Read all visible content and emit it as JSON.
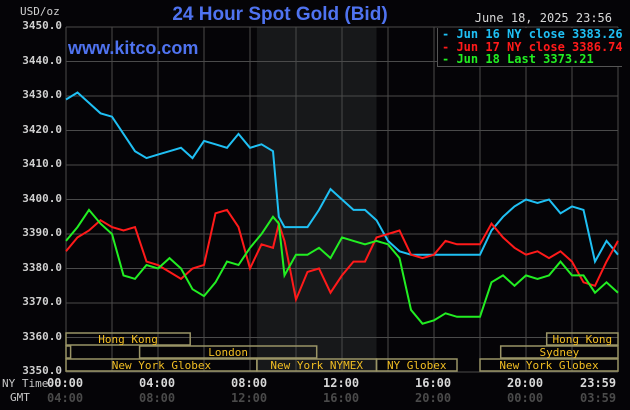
{
  "header": {
    "title": "24 Hour Spot Gold (Bid)",
    "site": "www.kitco.com",
    "datetime": "June 18, 2025 23:56",
    "y_unit": "USD/oz"
  },
  "legend": [
    {
      "label": "Jun 16 NY close 3383.26",
      "color": "#1fc0f4"
    },
    {
      "label": "Jun 17 NY close 3386.74",
      "color": "#ff1a1a"
    },
    {
      "label": "Jun 18 Last 3373.21",
      "color": "#22ee22"
    }
  ],
  "axis": {
    "y_ticks": [
      "3450.0",
      "3440.0",
      "3430.0",
      "3420.0",
      "3410.0",
      "3400.0",
      "3390.0",
      "3380.0",
      "3370.0",
      "3360.0",
      "3350.0"
    ],
    "x_row_ny_label": "NY Time",
    "x_row_gmt_label": "GMT",
    "ny_ticks": [
      "00:00",
      "04:00",
      "08:00",
      "12:00",
      "16:00",
      "20:00",
      "23:59"
    ],
    "gmt_ticks": [
      "04:00",
      "08:00",
      "12:00",
      "16:00",
      "20:00",
      "00:00",
      "03:59"
    ]
  },
  "sessions": [
    {
      "label": "Hong Kong",
      "start": 0,
      "end": 5.4,
      "row": 0
    },
    {
      "label": "Hong Kong",
      "start": 20.9,
      "end": 24,
      "row": 0
    },
    {
      "label": "London",
      "start": 3.2,
      "end": 10.9,
      "row": 1
    },
    {
      "label": "",
      "start": 0,
      "end": 0.2,
      "row": 1
    },
    {
      "label": "Sydney",
      "start": 18.9,
      "end": 24,
      "row": 1
    },
    {
      "label": "New York Globex",
      "start": 0,
      "end": 8.3,
      "row": 2
    },
    {
      "label": "New York NYMEX",
      "start": 8.3,
      "end": 13.5,
      "row": 2
    },
    {
      "label": "NY Globex",
      "start": 13.5,
      "end": 17.0,
      "row": 2
    },
    {
      "label": "New York Globex",
      "start": 18.0,
      "end": 24,
      "row": 2
    }
  ],
  "chart_data": {
    "type": "line",
    "title": "24 Hour Spot Gold (Bid)",
    "xlabel": "NY Time",
    "ylabel": "USD/oz",
    "ylim": [
      3350,
      3450
    ],
    "xlim_hours": [
      0,
      24
    ],
    "grid": true,
    "legend_position": "top-right",
    "shaded_region_hours": [
      8.3,
      13.5
    ],
    "x_hours": [
      0,
      0.5,
      1,
      1.5,
      2,
      2.5,
      3,
      3.5,
      4,
      4.5,
      5,
      5.5,
      6,
      6.5,
      7,
      7.5,
      8,
      8.5,
      9,
      9.25,
      9.5,
      10,
      10.5,
      11,
      11.5,
      12,
      12.5,
      13,
      13.5,
      14,
      14.5,
      15,
      15.5,
      16,
      16.5,
      17,
      17.5,
      18,
      18.5,
      19,
      19.5,
      20,
      20.5,
      21,
      21.5,
      22,
      22.5,
      23,
      23.5,
      24
    ],
    "series": [
      {
        "name": "Jun 16 NY close 3383.26",
        "color": "#1fc0f4",
        "values": [
          3429,
          3431,
          3428,
          3425,
          3424,
          3419,
          3414,
          3412,
          3413,
          3414,
          3415,
          3412,
          3417,
          3416,
          3415,
          3419,
          3415,
          3416,
          3414,
          3395,
          3392,
          3392,
          3392,
          3397,
          3403,
          3400,
          3397,
          3397,
          3394,
          3388,
          3385,
          3384,
          3384,
          3384,
          3384,
          3384,
          3384,
          3384,
          3391,
          3395,
          3398,
          3400,
          3399,
          3400,
          3396,
          3398,
          3397,
          3382,
          3388,
          3384
        ]
      },
      {
        "name": "Jun 17 NY close 3386.74",
        "color": "#ff1a1a",
        "values": [
          3385,
          3389,
          3391,
          3394,
          3392,
          3391,
          3392,
          3382,
          3381,
          3379,
          3377,
          3380,
          3381,
          3396,
          3397,
          3392,
          3380,
          3387,
          3386,
          3393,
          3388,
          3371,
          3379,
          3380,
          3373,
          3378,
          3382,
          3382,
          3389,
          3390,
          3391,
          3384,
          3383,
          3384,
          3388,
          3387,
          3387,
          3387,
          3393,
          3389,
          3386,
          3384,
          3385,
          3383,
          3385,
          3382,
          3376,
          3375,
          3382,
          3388
        ]
      },
      {
        "name": "Jun 18 Last 3373.21",
        "color": "#22ee22",
        "values": [
          3388,
          3392,
          3397,
          3393,
          3390,
          3378,
          3377,
          3381,
          3380,
          3383,
          3380,
          3374,
          3372,
          3376,
          3382,
          3381,
          3386,
          3390,
          3395,
          3393,
          3378,
          3384,
          3384,
          3386,
          3383,
          3389,
          3388,
          3387,
          3388,
          3387,
          3383,
          3368,
          3364,
          3365,
          3367,
          3366,
          3366,
          3366,
          3376,
          3378,
          3375,
          3378,
          3377,
          3378,
          3382,
          3378,
          3378,
          3373,
          3376,
          3373
        ]
      }
    ]
  }
}
